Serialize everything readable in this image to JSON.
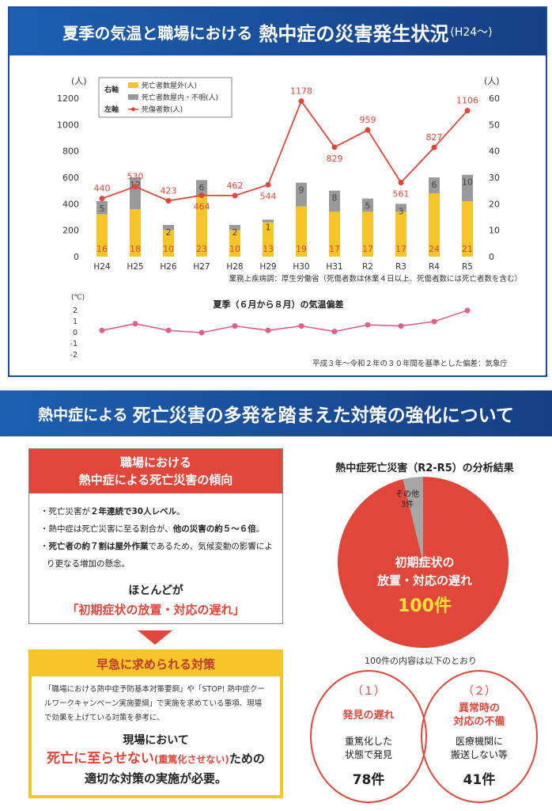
{
  "banner1": {
    "title_main": "夏季の気温と職場における",
    "title_emph": "熱中症の災害発生状況",
    "title_suffix": "(H24〜)"
  },
  "chart_data": [
    {
      "type": "bar+line",
      "categories": [
        "H24",
        "H25",
        "H26",
        "H27",
        "H28",
        "H29",
        "H30",
        "H31",
        "R2",
        "R3",
        "R4",
        "R5"
      ],
      "series": [
        {
          "name": "死亡者数屋外(人)",
          "axis": "right",
          "color": "#f6c52a",
          "values": [
            16,
            18,
            10,
            23,
            10,
            13,
            19,
            17,
            17,
            17,
            24,
            21
          ]
        },
        {
          "name": "死亡者数屋内・不明(人)",
          "axis": "right",
          "color": "#9a9a9a",
          "values": [
            5,
            12,
            2,
            6,
            2,
            1,
            9,
            8,
            5,
            3,
            6,
            10
          ]
        },
        {
          "name": "死傷者数(人)",
          "axis": "left",
          "color": "#e0473a",
          "values": [
            440,
            530,
            423,
            464,
            462,
            544,
            1178,
            829,
            959,
            561,
            827,
            1106
          ]
        }
      ],
      "left_axis": {
        "unit": "(人)",
        "ticks": [
          "0",
          "200",
          "400",
          "600",
          "800",
          "1000",
          "1200"
        ],
        "range": [
          0,
          1200
        ]
      },
      "right_axis": {
        "unit": "(人)",
        "ticks": [
          "0",
          "10",
          "20",
          "30",
          "40",
          "50",
          "60"
        ],
        "range": [
          0,
          60
        ]
      },
      "legend": {
        "right_label": "右軸",
        "left_label": "左軸",
        "placement": "top-left"
      },
      "note": "業務上疾病調：厚生労働省（死傷者数は休業４日以上、死傷者数には死亡者数を含む）"
    },
    {
      "type": "line",
      "title": "夏季（６月から８月）の気温偏差",
      "categories": [
        "H24",
        "H25",
        "H26",
        "H27",
        "H28",
        "H29",
        "H30",
        "H31",
        "R2",
        "R3",
        "R4",
        "R5"
      ],
      "values": [
        0.2,
        0.8,
        0.2,
        0.0,
        0.6,
        0.2,
        0.6,
        0.1,
        0.7,
        0.6,
        1.0,
        2.0
      ],
      "y_axis": {
        "unit": "(℃)",
        "ticks": [
          "-2",
          "-1",
          "0",
          "1",
          "2"
        ],
        "range": [
          -2,
          2
        ]
      },
      "color": "#e0608a",
      "note": "平成３年〜令和２年の３０年間を基準とした偏差：気象庁"
    },
    {
      "type": "pie",
      "title": "熱中症死亡災害（R2-R5）の分析結果",
      "slices": [
        {
          "name": "初期症状の放置・対応の遅れ",
          "value": 100,
          "label": "100件",
          "color": "#e0473a"
        },
        {
          "name": "その他",
          "value": 3,
          "label": "3件",
          "color": "#a6a6a6"
        }
      ]
    }
  ],
  "banner2": {
    "title_main": "熱中症による",
    "title_emph": "死亡災害の多発を踏まえた対策の強化について"
  },
  "trend": {
    "title_line1": "職場における",
    "title_line2": "熱中症による死亡災害の傾向",
    "item1": {
      "a": "・死亡災害が",
      "b": "２年連続で30人レベル",
      "c": "。"
    },
    "item2": {
      "a": "・熱中症は死亡災害に至る割合が、",
      "b": "他の災害の約５〜６倍",
      "c": "。"
    },
    "item3": {
      "a": "・",
      "b": "死亡者の約７割は屋外作業",
      "c": "であるため、気候変動の影響により更なる増加の懸念。"
    },
    "mostly": "ほとんどが",
    "delay": "「初期症状の放置・対応の遅れ」"
  },
  "urgent": {
    "title": "早急に求められる対策",
    "body": "「職場における熱中症予防基本対策要綱」や「STOP! 熱中症クールワークキャンペーン実施要綱」で実施を求めている事項、現場で効果を上げている対策を参考に、",
    "onsite": "現場において",
    "red1": "死亡に至らせない",
    "red1_paren": "(重篤化させない)",
    "after": "ための",
    "line2": "適切な対策の実施が必要。"
  },
  "pie_labels": {
    "main1": "初期症状の",
    "main2": "放置・対応の遅れ",
    "main_count": "100件",
    "other_name": "その他",
    "other_count": "3件",
    "breakdown": "100件の内容は以下のとおり"
  },
  "circles": [
    {
      "num": "（１）",
      "label1": "発見の遅れ",
      "label2": "",
      "desc1": "重篤化した",
      "desc2": "状態で発見",
      "count": "78件"
    },
    {
      "num": "（２）",
      "label1": "異常時の",
      "label2": "対応の不備",
      "desc1": "医療機関に",
      "desc2": "搬送しない等",
      "count": "41件"
    }
  ]
}
